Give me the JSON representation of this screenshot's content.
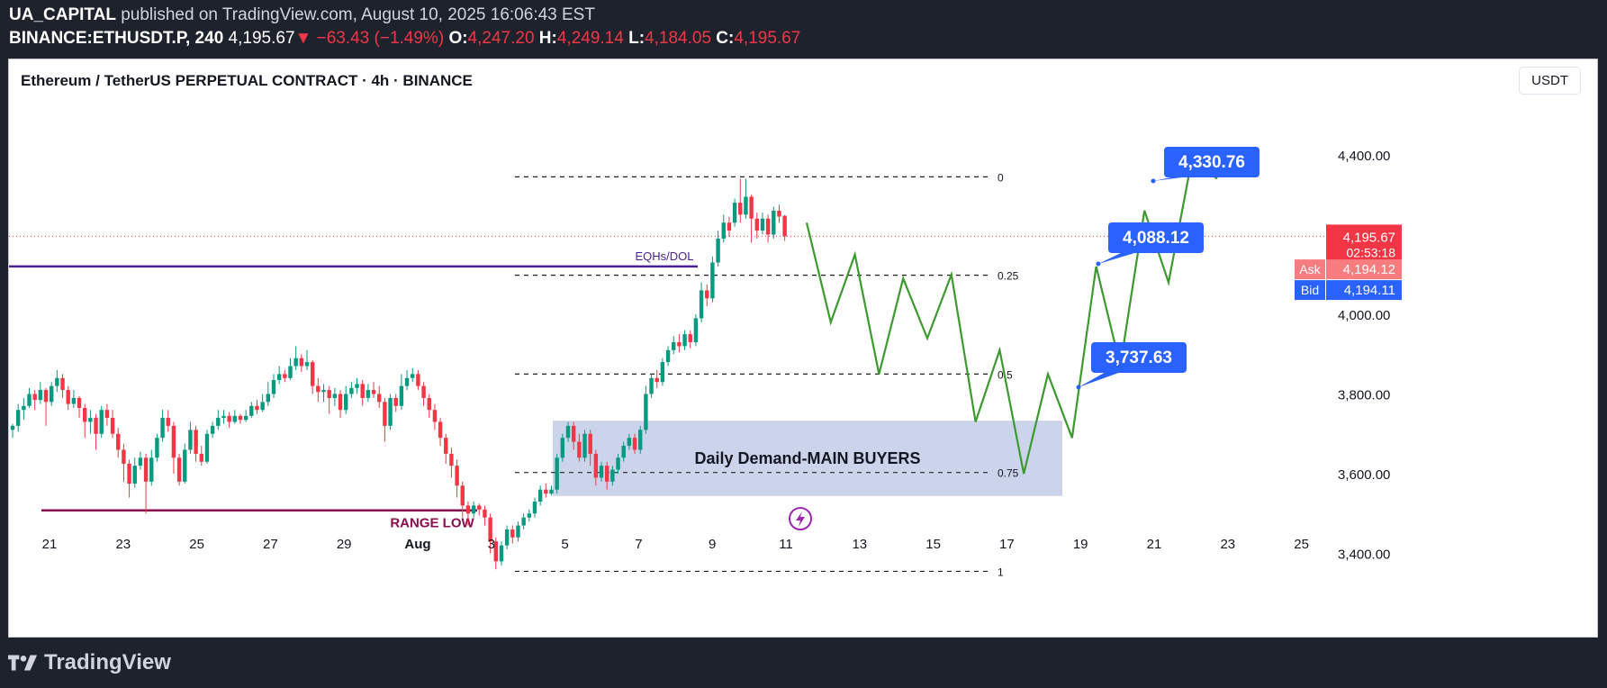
{
  "header": {
    "author": "UA_CAPITAL",
    "published": "published on TradingView.com, August 10, 2025 16:06:43 EST",
    "symbol": "BINANCE:ETHUSDT.P, 240",
    "last": "4,195.67",
    "change": "▼ −63.43 (−1.49%)",
    "o_label": "O:",
    "o_val": "4,247.20",
    "h_label": "H:",
    "h_val": "4,249.14",
    "l_label": "L:",
    "l_val": "4,184.05",
    "c_label": "C:",
    "c_val": "4,195.67"
  },
  "chart_title": "Ethereum / TetherUS PERPETUAL CONTRACT · 4h · BINANCE",
  "currency_button": "USDT",
  "footer_brand": "TradingView",
  "colors": {
    "up": "#089981",
    "down": "#f23645",
    "projection": "#3c9a2f",
    "demand_zone": "#c3cde8",
    "eqh_line": "#4b1e91",
    "range_low_line": "#880e4f",
    "label_blue": "#2962ff"
  },
  "chart_data": {
    "type": "candlestick",
    "timeframe": "4h",
    "ylim": [
      3330,
      4520
    ],
    "y_ticks": [
      "4,400.00",
      "4,000.00",
      "3,800.00",
      "3,600.00",
      "3,400.00"
    ],
    "y_tick_values": [
      4400,
      4000,
      3800,
      3600,
      3400
    ],
    "x_ticks": [
      "21",
      "23",
      "25",
      "27",
      "29",
      "Aug",
      "3",
      "5",
      "7",
      "9",
      "11",
      "13",
      "15",
      "17",
      "19",
      "21",
      "23",
      "25"
    ],
    "candles": [
      [
        3710,
        3720,
        3690,
        3725
      ],
      [
        3720,
        3760,
        3705,
        3775
      ],
      [
        3760,
        3770,
        3735,
        3790
      ],
      [
        3770,
        3800,
        3765,
        3815
      ],
      [
        3800,
        3785,
        3760,
        3810
      ],
      [
        3785,
        3810,
        3775,
        3830
      ],
      [
        3810,
        3780,
        3720,
        3815
      ],
      [
        3780,
        3820,
        3770,
        3830
      ],
      [
        3820,
        3840,
        3805,
        3860
      ],
      [
        3840,
        3810,
        3790,
        3850
      ],
      [
        3810,
        3775,
        3760,
        3820
      ],
      [
        3775,
        3790,
        3765,
        3810
      ],
      [
        3790,
        3765,
        3740,
        3795
      ],
      [
        3765,
        3730,
        3690,
        3775
      ],
      [
        3730,
        3740,
        3700,
        3760
      ],
      [
        3740,
        3700,
        3660,
        3750
      ],
      [
        3700,
        3760,
        3690,
        3770
      ],
      [
        3760,
        3740,
        3720,
        3775
      ],
      [
        3740,
        3700,
        3690,
        3760
      ],
      [
        3700,
        3660,
        3640,
        3715
      ],
      [
        3660,
        3625,
        3580,
        3675
      ],
      [
        3625,
        3575,
        3540,
        3635
      ],
      [
        3575,
        3620,
        3565,
        3640
      ],
      [
        3620,
        3640,
        3610,
        3655
      ],
      [
        3640,
        3580,
        3500,
        3650
      ],
      [
        3580,
        3640,
        3570,
        3660
      ],
      [
        3640,
        3690,
        3630,
        3700
      ],
      [
        3690,
        3740,
        3680,
        3760
      ],
      [
        3740,
        3720,
        3705,
        3760
      ],
      [
        3720,
        3640,
        3600,
        3730
      ],
      [
        3640,
        3580,
        3570,
        3650
      ],
      [
        3580,
        3660,
        3575,
        3675
      ],
      [
        3660,
        3710,
        3650,
        3730
      ],
      [
        3710,
        3650,
        3630,
        3720
      ],
      [
        3650,
        3630,
        3620,
        3670
      ],
      [
        3630,
        3700,
        3625,
        3710
      ],
      [
        3700,
        3720,
        3690,
        3730
      ],
      [
        3720,
        3740,
        3710,
        3760
      ],
      [
        3740,
        3745,
        3725,
        3760
      ],
      [
        3745,
        3730,
        3715,
        3755
      ],
      [
        3730,
        3745,
        3725,
        3760
      ],
      [
        3745,
        3735,
        3725,
        3750
      ],
      [
        3735,
        3745,
        3730,
        3760
      ],
      [
        3745,
        3770,
        3740,
        3780
      ],
      [
        3770,
        3760,
        3750,
        3785
      ],
      [
        3760,
        3780,
        3755,
        3800
      ],
      [
        3780,
        3800,
        3770,
        3830
      ],
      [
        3800,
        3835,
        3790,
        3850
      ],
      [
        3835,
        3850,
        3825,
        3870
      ],
      [
        3850,
        3840,
        3830,
        3860
      ],
      [
        3840,
        3870,
        3835,
        3890
      ],
      [
        3870,
        3890,
        3860,
        3920
      ],
      [
        3890,
        3870,
        3855,
        3900
      ],
      [
        3870,
        3880,
        3860,
        3910
      ],
      [
        3880,
        3820,
        3800,
        3885
      ],
      [
        3820,
        3805,
        3780,
        3840
      ],
      [
        3805,
        3810,
        3780,
        3825
      ],
      [
        3810,
        3790,
        3750,
        3820
      ],
      [
        3790,
        3800,
        3770,
        3815
      ],
      [
        3800,
        3760,
        3740,
        3810
      ],
      [
        3760,
        3800,
        3750,
        3820
      ],
      [
        3800,
        3815,
        3790,
        3830
      ],
      [
        3815,
        3825,
        3800,
        3840
      ],
      [
        3825,
        3790,
        3770,
        3835
      ],
      [
        3790,
        3810,
        3780,
        3825
      ],
      [
        3810,
        3800,
        3790,
        3830
      ],
      [
        3800,
        3780,
        3765,
        3820
      ],
      [
        3780,
        3720,
        3680,
        3790
      ],
      [
        3720,
        3790,
        3710,
        3800
      ],
      [
        3790,
        3770,
        3755,
        3800
      ],
      [
        3770,
        3820,
        3760,
        3850
      ],
      [
        3820,
        3840,
        3810,
        3860
      ],
      [
        3840,
        3850,
        3830,
        3865
      ],
      [
        3850,
        3820,
        3810,
        3860
      ],
      [
        3820,
        3790,
        3770,
        3830
      ],
      [
        3790,
        3760,
        3740,
        3800
      ],
      [
        3760,
        3730,
        3710,
        3775
      ],
      [
        3730,
        3690,
        3670,
        3740
      ],
      [
        3690,
        3650,
        3625,
        3700
      ],
      [
        3650,
        3620,
        3590,
        3665
      ],
      [
        3620,
        3570,
        3540,
        3635
      ],
      [
        3570,
        3520,
        3490,
        3580
      ],
      [
        3520,
        3500,
        3470,
        3530
      ],
      [
        3500,
        3520,
        3490,
        3530
      ],
      [
        3520,
        3510,
        3495,
        3525
      ],
      [
        3510,
        3490,
        3470,
        3520
      ],
      [
        3490,
        3430,
        3400,
        3500
      ],
      [
        3430,
        3380,
        3360,
        3440
      ],
      [
        3380,
        3420,
        3370,
        3430
      ],
      [
        3420,
        3460,
        3410,
        3470
      ],
      [
        3460,
        3440,
        3425,
        3470
      ],
      [
        3440,
        3470,
        3430,
        3480
      ],
      [
        3470,
        3490,
        3460,
        3500
      ],
      [
        3490,
        3500,
        3480,
        3510
      ],
      [
        3500,
        3530,
        3490,
        3540
      ],
      [
        3530,
        3560,
        3520,
        3570
      ],
      [
        3560,
        3550,
        3540,
        3575
      ],
      [
        3550,
        3560,
        3545,
        3570
      ],
      [
        3560,
        3640,
        3550,
        3650
      ],
      [
        3640,
        3690,
        3630,
        3700
      ],
      [
        3690,
        3720,
        3680,
        3730
      ],
      [
        3720,
        3680,
        3660,
        3730
      ],
      [
        3680,
        3640,
        3630,
        3700
      ],
      [
        3640,
        3700,
        3630,
        3710
      ],
      [
        3700,
        3650,
        3620,
        3710
      ],
      [
        3650,
        3590,
        3570,
        3660
      ],
      [
        3590,
        3620,
        3580,
        3630
      ],
      [
        3620,
        3580,
        3560,
        3630
      ],
      [
        3580,
        3610,
        3570,
        3620
      ],
      [
        3610,
        3640,
        3600,
        3650
      ],
      [
        3640,
        3670,
        3630,
        3680
      ],
      [
        3670,
        3690,
        3660,
        3700
      ],
      [
        3690,
        3660,
        3650,
        3700
      ],
      [
        3660,
        3710,
        3650,
        3720
      ],
      [
        3710,
        3800,
        3700,
        3820
      ],
      [
        3800,
        3840,
        3790,
        3850
      ],
      [
        3840,
        3830,
        3815,
        3860
      ],
      [
        3830,
        3880,
        3820,
        3890
      ],
      [
        3880,
        3910,
        3870,
        3920
      ],
      [
        3910,
        3930,
        3900,
        3945
      ],
      [
        3930,
        3920,
        3905,
        3950
      ],
      [
        3920,
        3950,
        3910,
        3960
      ],
      [
        3950,
        3930,
        3915,
        3960
      ],
      [
        3930,
        3990,
        3920,
        4000
      ],
      [
        3990,
        4060,
        3980,
        4080
      ],
      [
        4060,
        4040,
        4020,
        4075
      ],
      [
        4040,
        4130,
        4030,
        4145
      ],
      [
        4130,
        4190,
        4120,
        4210
      ],
      [
        4190,
        4230,
        4180,
        4250
      ],
      [
        4230,
        4210,
        4195,
        4245
      ],
      [
        4230,
        4280,
        4220,
        4290
      ],
      [
        4280,
        4250,
        4230,
        4340
      ],
      [
        4250,
        4295,
        4240,
        4340
      ],
      [
        4295,
        4240,
        4180,
        4300
      ],
      [
        4240,
        4210,
        4190,
        4255
      ],
      [
        4210,
        4240,
        4200,
        4255
      ],
      [
        4240,
        4200,
        4180,
        4250
      ],
      [
        4200,
        4260,
        4190,
        4270
      ],
      [
        4260,
        4245,
        4230,
        4275
      ],
      [
        4247.2,
        4195.67,
        4184.05,
        4249.14
      ]
    ],
    "last_price": 4195.67,
    "countdown": "02:53:18",
    "ask_label": "Ask",
    "ask": "4,194.12",
    "bid_label": "Bid",
    "bid": "4,194.11",
    "price_badge": "4,195.67",
    "fib_levels": [
      {
        "label": "0",
        "price": 4345
      },
      {
        "label": "0.25",
        "price": 4098
      },
      {
        "label": "0.5",
        "price": 3850
      },
      {
        "label": "0.75",
        "price": 3603
      },
      {
        "label": "1",
        "price": 3355
      }
    ],
    "eqh_label": "EQHs/DOL",
    "eqh_price": 4120,
    "range_low_label": "RANGE LOW",
    "range_low_price": 3508,
    "demand_zone": {
      "label": "Daily Demand-MAIN BUYERS",
      "top": 3733,
      "bottom": 3544
    },
    "projection_path": [
      4230,
      3980,
      4150,
      3850,
      4090,
      3940,
      4100,
      3730,
      3910,
      3600,
      3850,
      3690,
      4120,
      3870,
      4260,
      4080,
      4400,
      4340
    ],
    "targets": [
      {
        "label": "4,330.76",
        "price": 4330.76
      },
      {
        "label": "4,088.12",
        "price": 4088.12
      },
      {
        "label": "3,737.63",
        "price": 3737.63
      }
    ]
  }
}
